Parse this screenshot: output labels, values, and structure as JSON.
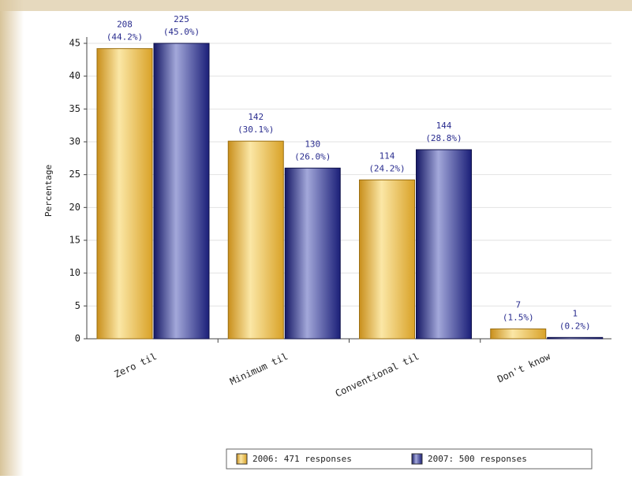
{
  "chart_data": {
    "type": "bar",
    "y_label": "Percentage",
    "categories": [
      "Zero til",
      "Minimum til",
      "Conventional til",
      "Don't know"
    ],
    "series": [
      {
        "name": "2006: 471 responses",
        "color": "#e2ad2e",
        "values": [
          44.2,
          30.1,
          24.2,
          1.5
        ],
        "value_labels": [
          [
            "208",
            "(44.2%)"
          ],
          [
            "142",
            "(30.1%)"
          ],
          [
            "114",
            "(24.2%)"
          ],
          [
            "7",
            "(1.5%)"
          ]
        ]
      },
      {
        "name": "2007: 500 responses",
        "color": "#1b1f78",
        "values": [
          45.0,
          26.0,
          28.8,
          0.2
        ],
        "value_labels": [
          [
            "225",
            "(45.0%)"
          ],
          [
            "130",
            "(26.0%)"
          ],
          [
            "144",
            "(28.8%)"
          ],
          [
            "1",
            "(0.2%)"
          ]
        ]
      }
    ],
    "ylim": [
      0,
      45
    ],
    "yticks": [
      0,
      5,
      10,
      15,
      20,
      25,
      30,
      35,
      40,
      45
    ],
    "grid": true
  }
}
